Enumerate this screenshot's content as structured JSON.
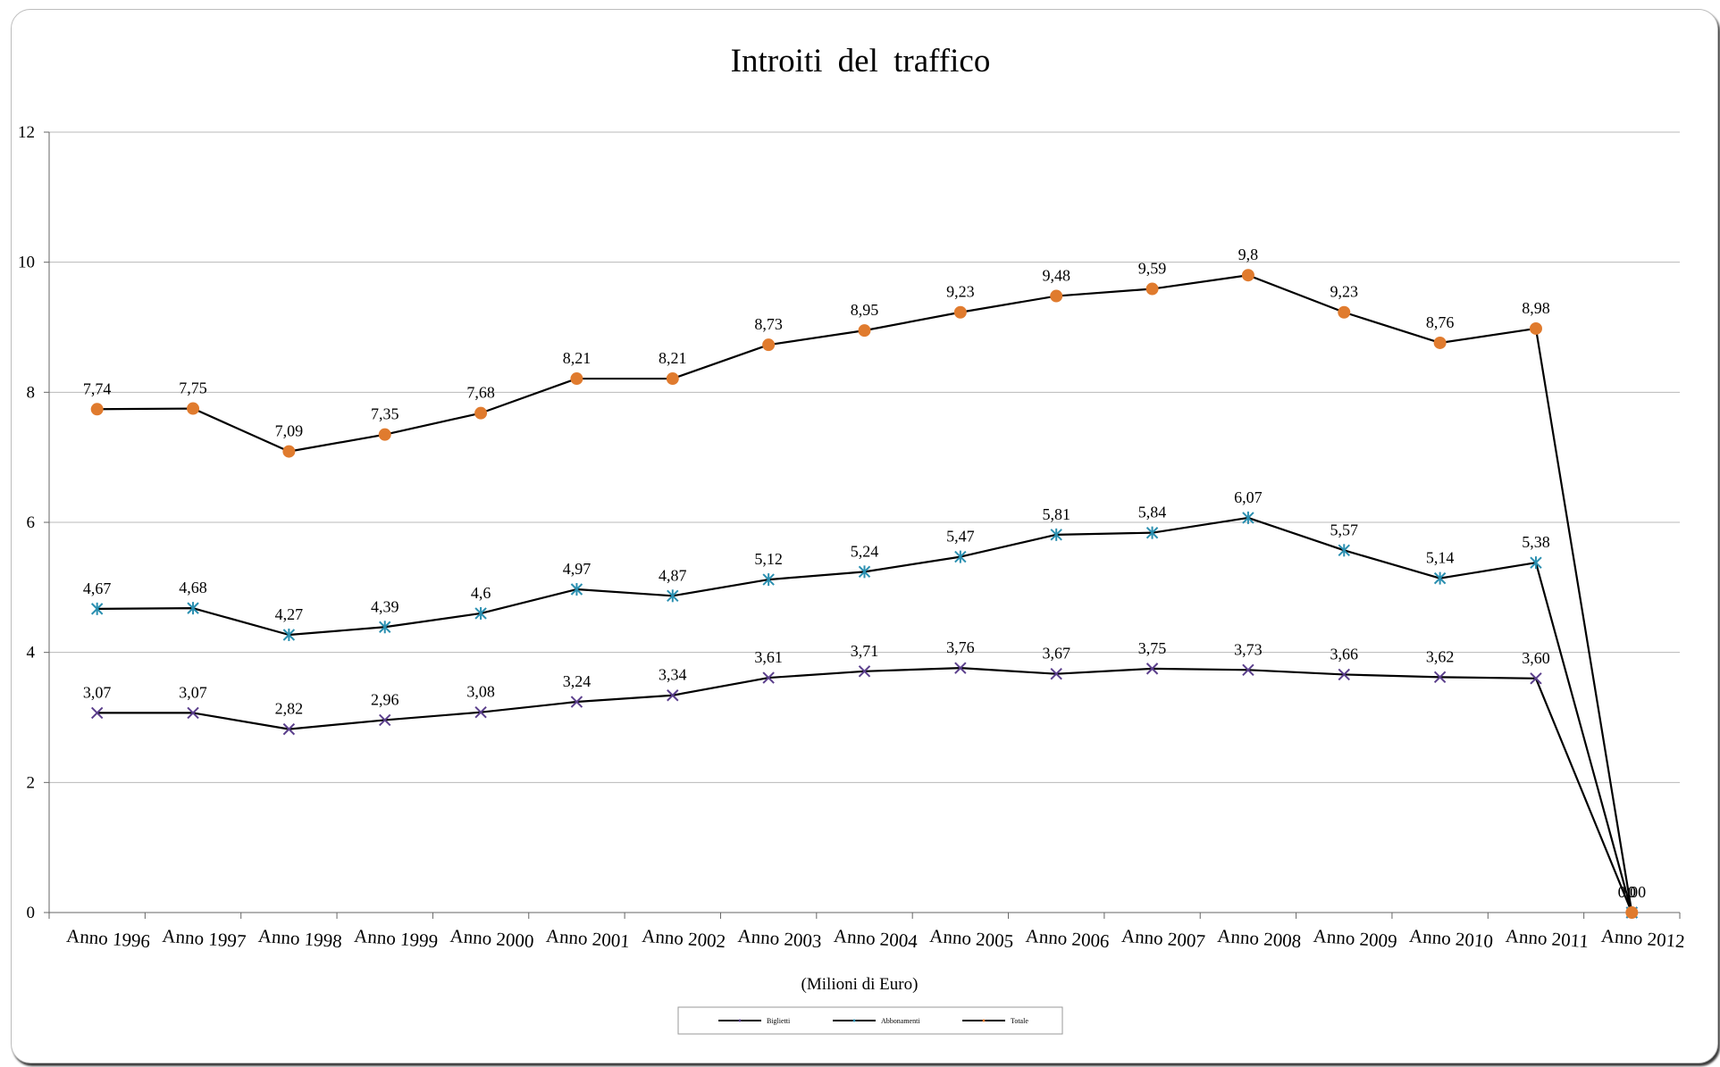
{
  "chart_data": {
    "type": "line",
    "title": "Introiti del traffico",
    "xlabel": "(Milioni di Euro)",
    "ylabel": "",
    "ylim": [
      0,
      12
    ],
    "yticks": [
      0,
      2,
      4,
      6,
      8,
      10,
      12
    ],
    "grid": true,
    "legend_position": "bottom",
    "categories": [
      "Anno 1996",
      "Anno 1997",
      "Anno 1998",
      "Anno 1999",
      "Anno 2000",
      "Anno 2001",
      "Anno 2002",
      "Anno 2003",
      "Anno 2004",
      "Anno 2005",
      "Anno 2006",
      "Anno 2007",
      "Anno 2008",
      "Anno 2009",
      "Anno 2010",
      "Anno 2011",
      "Anno 2012"
    ],
    "series": [
      {
        "name": "Biglietti",
        "marker": "x",
        "color": "#5b3f8c",
        "values": [
          3.07,
          3.07,
          2.82,
          2.96,
          3.08,
          3.24,
          3.34,
          3.61,
          3.71,
          3.76,
          3.67,
          3.75,
          3.73,
          3.66,
          3.62,
          3.6,
          0
        ],
        "labels": [
          "3,07",
          "3,07",
          "2,82",
          "2,96",
          "3,08",
          "3,24",
          "3,34",
          "3,61",
          "3,71",
          "3,76",
          "3,67",
          "3,75",
          "3,73",
          "3,66",
          "3,62",
          "3,60",
          "0,00"
        ]
      },
      {
        "name": "Abbonamenti",
        "marker": "star",
        "color": "#2a8fb0",
        "values": [
          4.67,
          4.68,
          4.27,
          4.39,
          4.6,
          4.97,
          4.87,
          5.12,
          5.24,
          5.47,
          5.81,
          5.84,
          6.07,
          5.57,
          5.14,
          5.38,
          0
        ],
        "labels": [
          "4,67",
          "4,68",
          "4,27",
          "4,39",
          "4,6",
          "4,97",
          "4,87",
          "5,12",
          "5,24",
          "5,47",
          "5,81",
          "5,84",
          "6,07",
          "5,57",
          "5,14",
          "5,38",
          "0"
        ]
      },
      {
        "name": "Totale",
        "marker": "circle",
        "color": "#e07b2e",
        "values": [
          7.74,
          7.75,
          7.09,
          7.35,
          7.68,
          8.21,
          8.21,
          8.73,
          8.95,
          9.23,
          9.48,
          9.59,
          9.8,
          9.23,
          8.76,
          8.98,
          0
        ],
        "labels": [
          "7,74",
          "7,75",
          "7,09",
          "7,35",
          "7,68",
          "8,21",
          "8,21",
          "8,73",
          "8,95",
          "9,23",
          "9,48",
          "9,59",
          "9,8",
          "9,23",
          "8,76",
          "8,98",
          "0"
        ]
      }
    ]
  }
}
